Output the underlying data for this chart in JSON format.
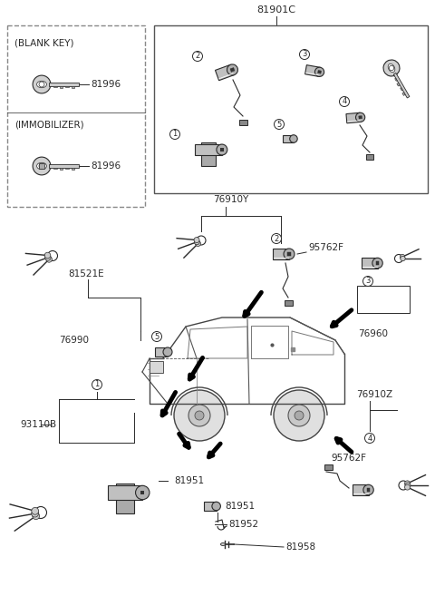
{
  "bg_color": "#ffffff",
  "line_color": "#2a2a2a",
  "text_color": "#2a2a2a",
  "gray_light": "#bbbbbb",
  "gray_mid": "#888888",
  "gray_dark": "#555555",
  "figsize": [
    4.8,
    6.57
  ],
  "dpi": 100,
  "part_number_top": "81901C",
  "pn_76910Y": "76910Y",
  "pn_95762F": "95762F",
  "pn_76960": "76960",
  "pn_76910Z": "76910Z",
  "pn_81521E": "81521E",
  "pn_76990": "76990",
  "pn_93110B": "93110B",
  "pn_81951": "81951",
  "pn_81952": "81952",
  "pn_81958": "81958",
  "pn_81996": "81996",
  "lbl_blank": "(BLANK KEY)",
  "lbl_immob": "(IMMOBILIZER)"
}
